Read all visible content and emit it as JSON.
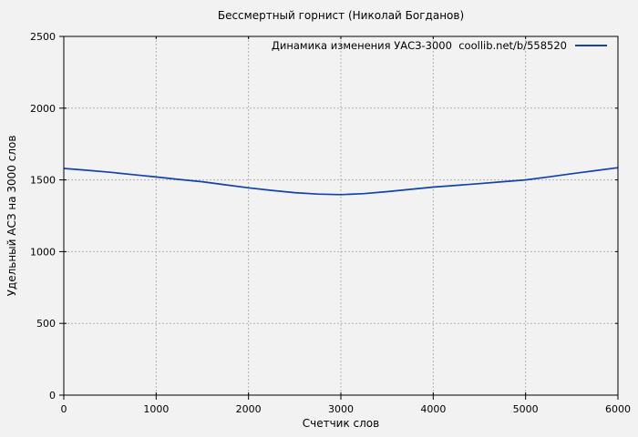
{
  "title": "Бессмертный горнист (Николай Богданов)",
  "legend": {
    "label": "Динамика изменения УАСЗ-3000  coollib.net/b/558520"
  },
  "colors": {
    "background": "#f2f2f2",
    "grid": "#b0b0b0",
    "axis": "#000000",
    "line": "#1243ab"
  },
  "chart_data": {
    "type": "line",
    "title": "Бессмертный горнист (Николай Богданов)",
    "xlabel": "Счетчик слов",
    "ylabel": "Удельный АСЗ на 3000 слов",
    "xlim": [
      0,
      6000
    ],
    "ylim": [
      0,
      2500
    ],
    "xticks": [
      0,
      1000,
      2000,
      3000,
      4000,
      5000,
      6000
    ],
    "yticks": [
      0,
      500,
      1000,
      1500,
      2000,
      2500
    ],
    "grid": true,
    "legend_position": "top-right-inside",
    "series": [
      {
        "name": "Динамика изменения УАСЗ-3000  coollib.net/b/558520",
        "color": "#1243ab",
        "x": [
          0,
          250,
          500,
          750,
          1000,
          1250,
          1500,
          1750,
          2000,
          2250,
          2500,
          2750,
          3000,
          3250,
          3500,
          3750,
          4000,
          4250,
          4500,
          4750,
          5000,
          5250,
          5500,
          5750,
          6000
        ],
        "y": [
          1580,
          1567,
          1553,
          1537,
          1520,
          1503,
          1487,
          1466,
          1445,
          1427,
          1411,
          1401,
          1397,
          1404,
          1418,
          1434,
          1450,
          1462,
          1474,
          1487,
          1500,
          1521,
          1543,
          1564,
          1585
        ]
      }
    ]
  }
}
